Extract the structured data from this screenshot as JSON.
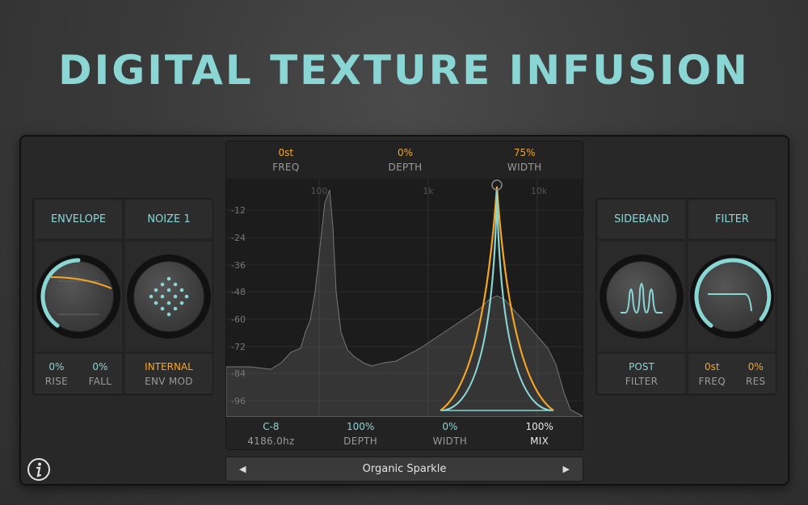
{
  "title": "DIGITAL TEXTURE INFUSION",
  "left_panel": {
    "tabs": [
      "ENVELOPE",
      "NOIZE 1"
    ],
    "values": [
      {
        "value": "0%",
        "label": "RISE"
      },
      {
        "value": "0%",
        "label": "FALL"
      }
    ],
    "mod_value": "INTERNAL",
    "mod_label": "ENV MOD"
  },
  "right_panel": {
    "tabs": [
      "SIDEBAND",
      "FILTER"
    ],
    "post_value": "POST",
    "post_label": "FILTER",
    "values": [
      {
        "value": "0st",
        "label": "FREQ"
      },
      {
        "value": "0%",
        "label": "RES"
      }
    ]
  },
  "center": {
    "top_params": [
      {
        "value": "0st",
        "label": "FREQ"
      },
      {
        "value": "0%",
        "label": "DEPTH"
      },
      {
        "value": "75%",
        "label": "WIDTH"
      }
    ],
    "freq_labels": [
      "100",
      "1k",
      "10k"
    ],
    "db_labels": [
      "-12",
      "-24",
      "-36",
      "-48",
      "-60",
      "-72",
      "-84",
      "-96"
    ],
    "bottom_params": [
      {
        "value": "C-8",
        "label": "4186.0hz"
      },
      {
        "value": "100%",
        "label": "DEPTH"
      },
      {
        "value": "0%",
        "label": "WIDTH"
      },
      {
        "value": "100%",
        "label": "MIX"
      }
    ]
  },
  "preset": {
    "name": "Organic Sparkle",
    "prev_icon": "◀",
    "next_icon": "▶"
  },
  "colors": {
    "accent": "#8ad6d4",
    "orange": "#f5a623",
    "background": "#3a3a3a"
  }
}
